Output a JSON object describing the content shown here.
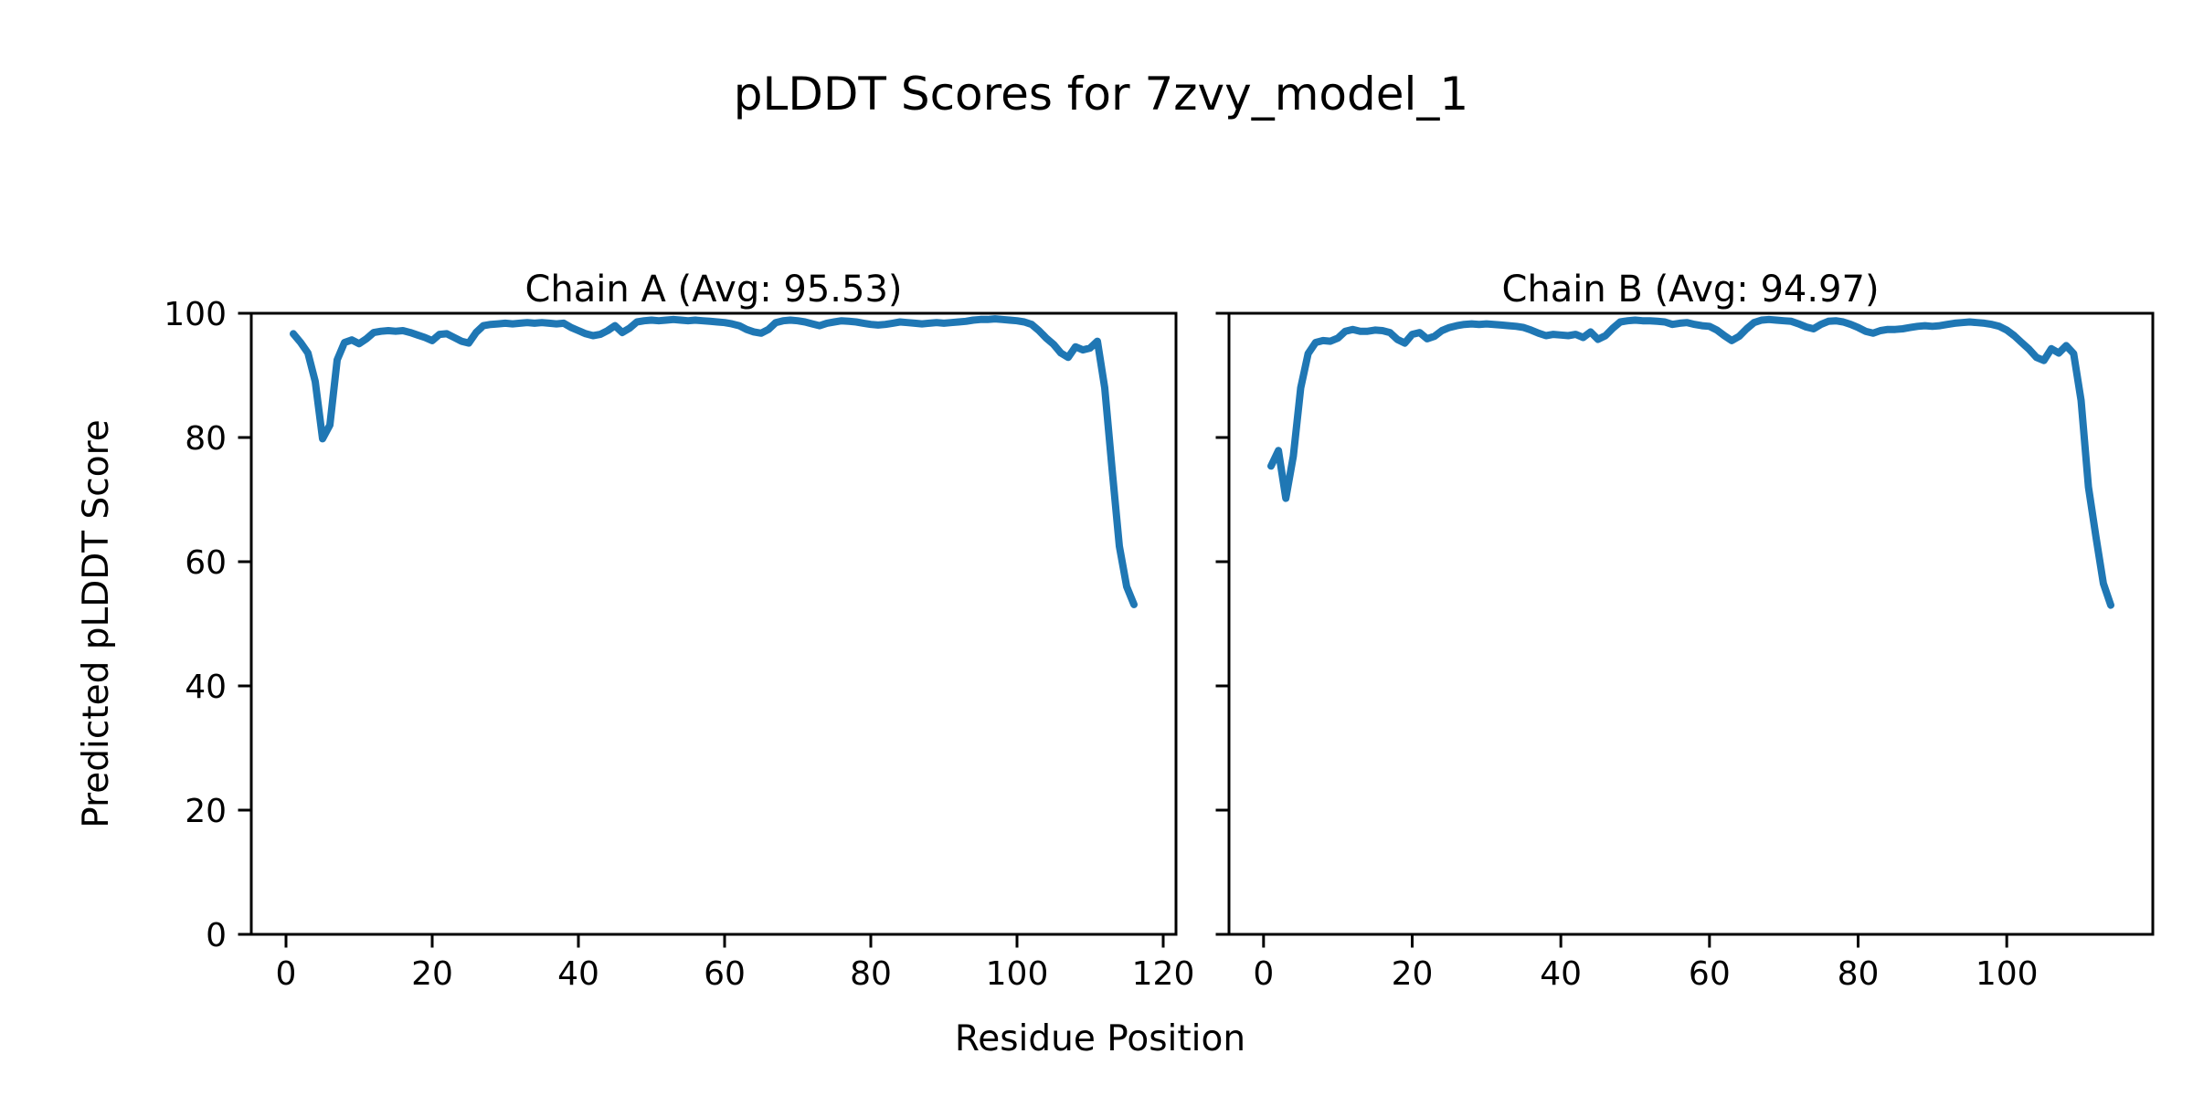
{
  "figure": {
    "title": "pLDDT Scores for 7zvy_model_1",
    "xlabel": "Residue Position",
    "ylabel": "Predicted pLDDT Score",
    "background_color": "#ffffff",
    "text_color": "#000000"
  },
  "chart_data": [
    {
      "type": "line",
      "title": "Chain A (Avg: 95.53)",
      "chain": "A",
      "average": 95.53,
      "line_color": "#1f77b4",
      "xlabel": "Residue Position",
      "ylabel": "Predicted pLDDT Score",
      "x_start": 1,
      "xlim": [
        -4.75,
        121.75
      ],
      "ylim": [
        0,
        100
      ],
      "xticks": [
        0,
        20,
        40,
        60,
        80,
        100,
        120
      ],
      "yticks": [
        0,
        20,
        40,
        60,
        80,
        100
      ],
      "grid": false,
      "values": [
        96.7,
        95.3,
        93.6,
        89.0,
        79.8,
        82.0,
        92.5,
        95.3,
        95.7,
        95.1,
        95.9,
        96.9,
        97.1,
        97.2,
        97.1,
        97.2,
        96.9,
        96.5,
        96.1,
        95.6,
        96.6,
        96.7,
        96.1,
        95.5,
        95.2,
        96.9,
        98.0,
        98.2,
        98.3,
        98.4,
        98.3,
        98.4,
        98.5,
        98.4,
        98.5,
        98.4,
        98.3,
        98.4,
        97.7,
        97.2,
        96.7,
        96.4,
        96.6,
        97.2,
        98.0,
        96.9,
        97.6,
        98.6,
        98.8,
        98.9,
        98.8,
        98.9,
        99.0,
        98.9,
        98.8,
        98.9,
        98.8,
        98.7,
        98.6,
        98.5,
        98.3,
        98.0,
        97.4,
        97.0,
        96.8,
        97.4,
        98.5,
        98.8,
        98.9,
        98.8,
        98.6,
        98.3,
        98.0,
        98.4,
        98.6,
        98.8,
        98.7,
        98.6,
        98.4,
        98.2,
        98.1,
        98.2,
        98.4,
        98.6,
        98.5,
        98.4,
        98.3,
        98.4,
        98.5,
        98.4,
        98.5,
        98.6,
        98.7,
        98.9,
        99.0,
        99.0,
        99.1,
        99.0,
        98.9,
        98.8,
        98.6,
        98.2,
        97.2,
        96.0,
        95.0,
        93.6,
        92.9,
        94.6,
        94.1,
        94.4,
        95.5,
        88.0,
        75.0,
        62.5,
        56.0,
        53.1
      ]
    },
    {
      "type": "line",
      "title": "Chain B (Avg: 94.97)",
      "chain": "B",
      "average": 94.97,
      "line_color": "#1f77b4",
      "xlabel": "Residue Position",
      "ylabel": "Predicted pLDDT Score",
      "x_start": 1,
      "xlim": [
        -4.65,
        119.65
      ],
      "ylim": [
        0,
        100
      ],
      "xticks": [
        0,
        20,
        40,
        60,
        80,
        100
      ],
      "yticks": [
        0,
        20,
        40,
        60,
        80,
        100
      ],
      "grid": false,
      "values": [
        75.4,
        77.9,
        70.2,
        77.0,
        88.0,
        93.5,
        95.3,
        95.6,
        95.5,
        96.0,
        97.1,
        97.4,
        97.1,
        97.1,
        97.3,
        97.2,
        96.9,
        95.8,
        95.2,
        96.6,
        96.9,
        95.9,
        96.3,
        97.2,
        97.7,
        98.0,
        98.2,
        98.3,
        98.2,
        98.3,
        98.2,
        98.1,
        98.0,
        97.9,
        97.7,
        97.3,
        96.8,
        96.4,
        96.6,
        96.5,
        96.4,
        96.6,
        96.1,
        97.0,
        95.8,
        96.4,
        97.6,
        98.6,
        98.8,
        98.9,
        98.8,
        98.8,
        98.7,
        98.6,
        98.2,
        98.4,
        98.5,
        98.2,
        98.0,
        97.9,
        97.3,
        96.4,
        95.6,
        96.3,
        97.5,
        98.5,
        98.9,
        99.0,
        98.9,
        98.8,
        98.7,
        98.3,
        97.8,
        97.5,
        98.2,
        98.7,
        98.8,
        98.6,
        98.2,
        97.7,
        97.1,
        96.8,
        97.2,
        97.4,
        97.4,
        97.5,
        97.7,
        97.9,
        98.0,
        97.9,
        98.0,
        98.2,
        98.4,
        98.5,
        98.6,
        98.5,
        98.4,
        98.2,
        97.9,
        97.3,
        96.4,
        95.3,
        94.2,
        92.9,
        92.4,
        94.3,
        93.6,
        94.8,
        93.5,
        86.0,
        72.0,
        64.0,
        56.5,
        53.0
      ]
    }
  ]
}
